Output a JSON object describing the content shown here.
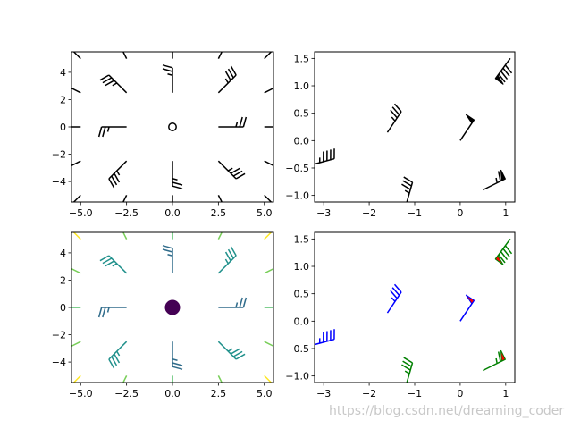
{
  "watermark": "https://blog.csdn.net/dreaming_coder",
  "chart_data": [
    {
      "type": "barbs",
      "xlim": [
        -5.5,
        5.5
      ],
      "ylim": [
        -5.5,
        5.5
      ],
      "xticks": [
        -5.0,
        -2.5,
        0.0,
        2.5,
        5.0
      ],
      "xtick_labels": [
        "−5.0",
        "−2.5",
        "0.0",
        "2.5",
        "5.0"
      ],
      "yticks": [
        -4,
        -2,
        0,
        2,
        4
      ],
      "ytick_labels": [
        "−4",
        "−2",
        "0",
        "2",
        "4"
      ],
      "grid": false,
      "x": [
        -5,
        -2.5,
        0,
        2.5,
        5
      ],
      "y": [
        -5,
        -2.5,
        0,
        2.5,
        5
      ],
      "u_formula": "10*x",
      "v_formula": "10*y",
      "barb_color": "#000000",
      "flag_color": "#000000"
    },
    {
      "type": "barbs",
      "xlim": [
        -3.2,
        1.2
      ],
      "ylim": [
        -1.12,
        1.62
      ],
      "xticks": [
        -3,
        -2,
        -1,
        0,
        1
      ],
      "xtick_labels": [
        "−3",
        "−2",
        "−1",
        "0",
        "1"
      ],
      "yticks": [
        -1.0,
        -0.5,
        0.0,
        0.5,
        1.0,
        1.5
      ],
      "ytick_labels": [
        "−1.0",
        "−0.5",
        "0.0",
        "0.5",
        "1.0",
        "1.5"
      ],
      "grid": false,
      "points": [
        {
          "x": -3.3,
          "y": -0.45,
          "u": 45,
          "v": 12
        },
        {
          "x": -1.6,
          "y": 0.15,
          "u": 20,
          "v": 30
        },
        {
          "x": -1.2,
          "y": -1.2,
          "u": 10,
          "v": 35
        },
        {
          "x": 0.0,
          "y": 0.0,
          "u": 30,
          "v": 45
        },
        {
          "x": 0.5,
          "y": -0.9,
          "u": 60,
          "v": 30
        },
        {
          "x": 1.1,
          "y": 1.5,
          "u": -55,
          "v": -75
        }
      ],
      "barb_color": "#000000",
      "flag_color": "#000000"
    },
    {
      "type": "barbs",
      "xlim": [
        -5.5,
        5.5
      ],
      "ylim": [
        -5.5,
        5.5
      ],
      "xticks": [
        -5.0,
        -2.5,
        0.0,
        2.5,
        5.0
      ],
      "xtick_labels": [
        "−5.0",
        "−2.5",
        "0.0",
        "2.5",
        "5.0"
      ],
      "yticks": [
        -4,
        -2,
        0,
        2,
        4
      ],
      "ytick_labels": [
        "−4",
        "−2",
        "0",
        "2",
        "4"
      ],
      "grid": false,
      "x": [
        -5,
        -2.5,
        0,
        2.5,
        5
      ],
      "y": [
        -5,
        -2.5,
        0,
        2.5,
        5
      ],
      "u_formula": "10*x",
      "v_formula": "10*y",
      "colormap": "viridis",
      "color_by": "magnitude",
      "colormap_stops": [
        "#440154",
        "#3b528b",
        "#21918c",
        "#5ec962",
        "#fde725"
      ]
    },
    {
      "type": "barbs",
      "xlim": [
        -3.2,
        1.2
      ],
      "ylim": [
        -1.12,
        1.62
      ],
      "xticks": [
        -3,
        -2,
        -1,
        0,
        1
      ],
      "xtick_labels": [
        "−3",
        "−2",
        "−1",
        "0",
        "1"
      ],
      "yticks": [
        -1.0,
        -0.5,
        0.0,
        0.5,
        1.0,
        1.5
      ],
      "ytick_labels": [
        "−1.0",
        "−0.5",
        "0.0",
        "0.5",
        "1.0",
        "1.5"
      ],
      "grid": false,
      "points": [
        {
          "x": -3.3,
          "y": -0.45,
          "u": 45,
          "v": 12,
          "color": "#0000ff"
        },
        {
          "x": -1.6,
          "y": 0.15,
          "u": 20,
          "v": 30,
          "color": "#0000ff"
        },
        {
          "x": -1.2,
          "y": -1.2,
          "u": 10,
          "v": 35,
          "color": "#008000"
        },
        {
          "x": 0.0,
          "y": 0.0,
          "u": 30,
          "v": 45,
          "color": "#0000ff"
        },
        {
          "x": 0.5,
          "y": -0.9,
          "u": 60,
          "v": 30,
          "color": "#008000"
        },
        {
          "x": 1.1,
          "y": 1.5,
          "u": -55,
          "v": -75,
          "color": "#008000"
        }
      ],
      "flag_color": "#ff0000",
      "barb_increments": {
        "half": 10,
        "full": 20,
        "flag": 100
      }
    }
  ]
}
